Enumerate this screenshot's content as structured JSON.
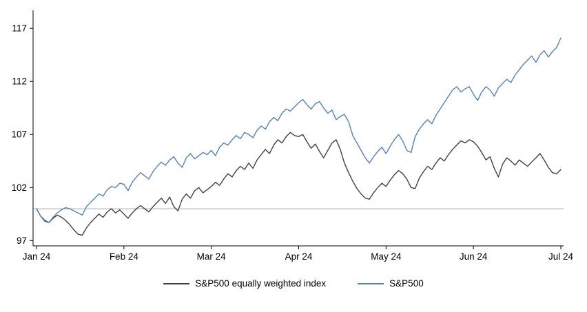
{
  "chart_data": {
    "type": "line",
    "title": "",
    "xlabel": "",
    "ylabel": "",
    "grid": false,
    "legend_position": "bottom",
    "x_tick_labels": [
      "Jan 24",
      "Feb 24",
      "Mar 24",
      "Apr 24",
      "May 24",
      "Jun 24",
      "Jul 24"
    ],
    "x_tick_indices": [
      0,
      21,
      42,
      63,
      84,
      105,
      126
    ],
    "y_axis": {
      "ticks": [
        97,
        102,
        107,
        112,
        117
      ],
      "range": [
        96.5,
        118.7
      ]
    },
    "reference_line": {
      "value": 100,
      "color": "#a6a6a6"
    },
    "series": [
      {
        "name": "S&P500 equally weighted index",
        "color": "#404040",
        "values": [
          100.0,
          99.3,
          98.9,
          98.7,
          99.1,
          99.4,
          99.2,
          98.9,
          98.5,
          98.0,
          97.6,
          97.5,
          98.2,
          98.7,
          99.1,
          99.5,
          99.2,
          99.7,
          100.0,
          99.6,
          99.9,
          99.5,
          99.1,
          99.6,
          100.0,
          100.3,
          100.0,
          99.7,
          100.2,
          100.6,
          101.0,
          100.5,
          101.1,
          100.2,
          99.8,
          100.9,
          101.4,
          101.0,
          101.7,
          102.0,
          101.5,
          101.8,
          102.1,
          102.5,
          102.2,
          102.8,
          103.3,
          103.0,
          103.6,
          104.0,
          103.7,
          104.3,
          103.8,
          104.6,
          105.1,
          105.6,
          105.2,
          106.0,
          106.5,
          106.2,
          106.8,
          107.2,
          106.9,
          106.8,
          107.0,
          106.3,
          105.7,
          106.1,
          105.4,
          104.8,
          105.5,
          106.2,
          106.5,
          105.6,
          104.3,
          103.4,
          102.6,
          101.9,
          101.4,
          101.0,
          100.9,
          101.5,
          102.0,
          102.4,
          102.1,
          102.7,
          103.2,
          103.6,
          103.3,
          102.8,
          102.0,
          101.9,
          102.9,
          103.5,
          104.0,
          103.7,
          104.3,
          104.8,
          104.5,
          105.1,
          105.6,
          106.0,
          106.4,
          106.2,
          106.5,
          106.3,
          105.9,
          105.3,
          104.6,
          104.9,
          103.8,
          103.0,
          104.2,
          104.8,
          104.5,
          104.1,
          104.6,
          104.3,
          104.0,
          104.4,
          104.8,
          105.2,
          104.6,
          103.9,
          103.4,
          103.3,
          103.7
        ]
      },
      {
        "name": "S&P500",
        "color": "#4f81bd",
        "values": [
          100.0,
          99.3,
          98.8,
          98.7,
          99.2,
          99.6,
          99.9,
          100.1,
          100.0,
          99.8,
          99.6,
          99.4,
          100.2,
          100.6,
          101.0,
          101.4,
          101.2,
          101.8,
          102.1,
          102.0,
          102.4,
          102.3,
          101.7,
          102.5,
          103.0,
          103.4,
          103.1,
          102.8,
          103.5,
          104.0,
          104.4,
          104.1,
          104.6,
          104.9,
          104.3,
          103.9,
          104.8,
          105.2,
          104.7,
          105.0,
          105.3,
          105.1,
          105.5,
          105.0,
          105.8,
          106.2,
          106.0,
          106.5,
          106.9,
          106.6,
          107.2,
          107.0,
          106.7,
          107.4,
          107.8,
          107.5,
          108.2,
          108.6,
          108.3,
          109.0,
          109.4,
          109.2,
          109.6,
          110.0,
          110.3,
          109.8,
          109.4,
          109.9,
          110.1,
          109.5,
          109.0,
          109.3,
          108.4,
          108.7,
          108.9,
          108.2,
          106.9,
          106.2,
          105.5,
          104.8,
          104.3,
          104.9,
          105.4,
          105.8,
          105.2,
          105.9,
          106.5,
          107.0,
          106.4,
          105.5,
          105.3,
          106.8,
          107.5,
          108.0,
          108.4,
          108.0,
          108.8,
          109.4,
          110.0,
          110.6,
          111.2,
          111.5,
          111.0,
          111.3,
          111.5,
          110.8,
          110.2,
          111.0,
          111.5,
          111.2,
          110.6,
          111.4,
          111.8,
          112.2,
          111.9,
          112.6,
          113.1,
          113.6,
          114.0,
          114.4,
          113.8,
          114.5,
          114.9,
          114.3,
          114.8,
          115.2,
          116.1
        ]
      }
    ]
  },
  "colors": {
    "axis": "#000000",
    "background": "#ffffff"
  }
}
